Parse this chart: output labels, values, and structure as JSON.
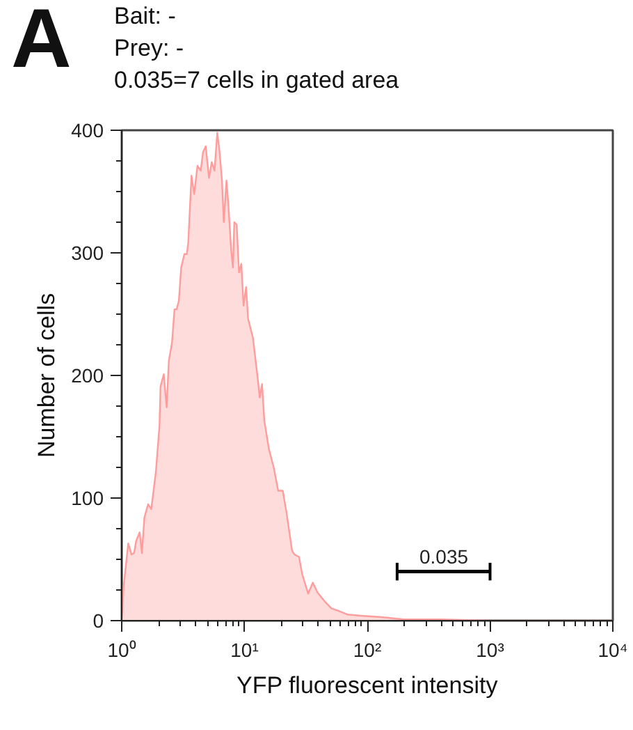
{
  "chart_data": {
    "type": "area",
    "xlabel": "YFP fluorescent intensity",
    "ylabel": "Number of cells",
    "log": "x",
    "grid": false,
    "xlim": [
      1,
      10000
    ],
    "ylim": [
      0,
      400
    ],
    "xticks": [
      {
        "value": 1,
        "label": "10⁰"
      },
      {
        "value": 10,
        "label": "10¹"
      },
      {
        "value": 100,
        "label": "10²"
      },
      {
        "value": 1000,
        "label": "10³"
      },
      {
        "value": 10000,
        "label": "10⁴"
      }
    ],
    "yticks": [
      0,
      100,
      200,
      300,
      400
    ],
    "annotations": [
      "A",
      "Bait: -",
      "Prey: -",
      "0.035=7 cells in gated area",
      {
        "text": "0.035",
        "x": 420,
        "y": 40
      }
    ],
    "series": [
      {
        "color": "#ff9c9c",
        "x": [
          1,
          1.035,
          1.13,
          1.2,
          1.26,
          1.31,
          1.4,
          1.46,
          1.53,
          1.64,
          1.74,
          1.9,
          2.03,
          2.07,
          2.2,
          2.32,
          2.42,
          2.57,
          2.69,
          2.8,
          2.92,
          3.05,
          3.24,
          3.39,
          3.48,
          3.7,
          3.89,
          4.14,
          4.4,
          4.59,
          4.83,
          5.14,
          5.41,
          5.7,
          6.0,
          6.27,
          6.55,
          6.78,
          7.13,
          7.38,
          7.78,
          8.05,
          8.26,
          8.63,
          9.02,
          9.42,
          9.82,
          10.3,
          10.7,
          11.7,
          12.7,
          13.3,
          13.9,
          14.5,
          15.8,
          17.3,
          18.8,
          20.5,
          22,
          24.4,
          25.5,
          27.8,
          29.5,
          33,
          36,
          39.3,
          44.7,
          51,
          58,
          69,
          89,
          126,
          200,
          400,
          1000,
          10000
        ],
        "values": [
          0,
          27,
          63,
          54,
          55,
          65,
          72,
          55,
          84,
          95,
          91,
          122,
          159,
          191,
          201,
          174,
          212,
          227,
          254,
          254,
          261,
          288,
          299,
          299,
          308,
          363,
          348,
          371,
          367,
          382,
          387,
          361,
          374,
          367,
          398,
          382,
          359,
          325,
          359,
          340,
          303,
          288,
          325,
          323,
          284,
          291,
          257,
          272,
          246,
          231,
          201,
          182,
          193,
          163,
          140,
          125,
          106,
          106,
          88,
          57,
          54,
          52,
          38,
          22,
          31,
          23,
          16,
          10,
          8,
          5,
          4,
          3,
          1,
          1,
          0,
          0
        ]
      },
      {
        "type": "line",
        "color": "#000000",
        "x": [
          175,
          1000
        ],
        "values": [
          40,
          40
        ]
      }
    ]
  }
}
